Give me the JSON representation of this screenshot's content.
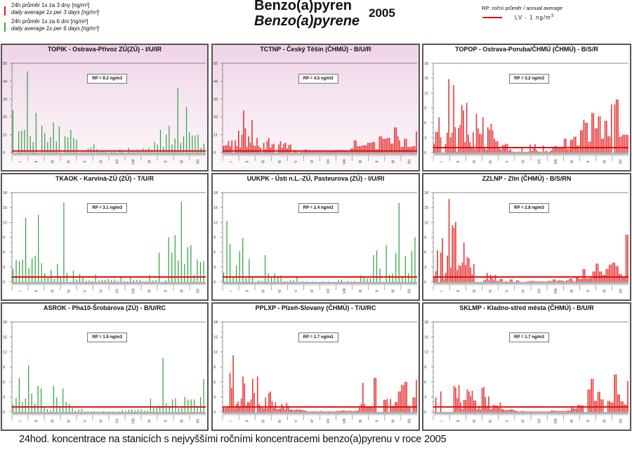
{
  "header": {
    "legend": [
      {
        "color": "#e01a1a",
        "cz": "24h průměr 1x za 3 dny [ng/m³]",
        "en": "daily average 1x per 3 days [ng/m³]"
      },
      {
        "color": "#3aaa3a",
        "cz": "24h průměr 1x za 6 dní [ng/m³]",
        "en": "daily average 1x per 6 days [ng/m³]"
      }
    ],
    "title_cz": "Benzo(a)pyren",
    "title_en": "Benzo(a)pyrene",
    "year": "2005",
    "rp_label_cz": "RP: roční průměr",
    "rp_label_sep": " / ",
    "rp_label_en": "annual average",
    "lv_label": "LV   - 1 ng/m",
    "lv_sup": "3"
  },
  "caption": "24hod. koncentrace na stanicích s nejvyššími ročními koncentracemi benzo(a)pyrenu v roce 2005",
  "colors": {
    "red": "#e01a1a",
    "green": "#2f9e3f",
    "limit": "#e01010"
  },
  "chart_data": [
    {
      "type": "bar",
      "title": "TOPIK - Ostrava-Přívoz ZÚ(ZÚ) - I/U/IR",
      "rp": "RP = 9.2 ng/m3",
      "series_color": "green",
      "highlight": true,
      "ylim": [
        0,
        55
      ],
      "yticks": [
        "0",
        "11",
        "22",
        "33",
        "44",
        "55"
      ],
      "limit_value": 1,
      "xticks": [
        "I",
        "II",
        "III",
        "IV",
        "V",
        "VI",
        "VII",
        "VIII",
        "IX",
        "X",
        "XI",
        "XII"
      ],
      "values": [
        26,
        0,
        13,
        13.5,
        14,
        50,
        10,
        6.5,
        24.5,
        0,
        16.5,
        12,
        6.5,
        9.5,
        18.5,
        7,
        16,
        0,
        10,
        9.5,
        14,
        9,
        8,
        0,
        1,
        0.5,
        2.5,
        3,
        5,
        2,
        0.5,
        1,
        0.5,
        0,
        0.5,
        0.5,
        0,
        2,
        1,
        0,
        3,
        1,
        1.5,
        2,
        1.5,
        2.5,
        2,
        3,
        2,
        6.5,
        5,
        14,
        3.5,
        11,
        16.5,
        5,
        8.5,
        40,
        6,
        10,
        28,
        12.5,
        10.5,
        10.5,
        11,
        3,
        5.5
      ]
    },
    {
      "type": "bar",
      "title": "TCTNP - Český Těšín (ČHMÚ) - B/U/R",
      "rp": "RP = 4.5 ng/m3",
      "series_color": "red",
      "highlight": true,
      "ylim": [
        0,
        55
      ],
      "yticks": [
        "0",
        "11",
        "22",
        "33",
        "44",
        "55"
      ],
      "limit_value": 1,
      "xticks": [
        "I",
        "II",
        "III",
        "IV",
        "V",
        "VI",
        "VII",
        "VIII",
        "IX",
        "X",
        "XI",
        "XII"
      ],
      "values": [
        4,
        4.5,
        4.5,
        7,
        4,
        7.5,
        0,
        7.5,
        4,
        13.5,
        3,
        11,
        26,
        15,
        3.5,
        10,
        6,
        20,
        4.5,
        4,
        9,
        4,
        3,
        0,
        6,
        2,
        7,
        9,
        3,
        5,
        5.5,
        0,
        0,
        5,
        7,
        3,
        5.5,
        6,
        2.5,
        4.5,
        5,
        0,
        1.5,
        1.5,
        0.5,
        0,
        0.5,
        0.5,
        0.5,
        2,
        0.5,
        0.5,
        0.5,
        0.5,
        0.5,
        0.5,
        0.5,
        1,
        0.5,
        0.5,
        0.5,
        1,
        0.5,
        0.5,
        1,
        1,
        1,
        1.5,
        1.5,
        1.5,
        1.5,
        1.5,
        1.5,
        1,
        0.5,
        0.5,
        2.5,
        2.5,
        7.5,
        7.5,
        4,
        4,
        4,
        4.5,
        4.5,
        4.5,
        6,
        6,
        6,
        6.5,
        6.5,
        2,
        2,
        10,
        10,
        8.5,
        8.5,
        8.5,
        9,
        9,
        5.5,
        5.5,
        15.5,
        15.5,
        10,
        7.5,
        3.5,
        3.5,
        8.5,
        8.5,
        3.5,
        3.5,
        3.5,
        4,
        4,
        13
      ]
    },
    {
      "type": "bar",
      "title": "TOPOP - Ostrava-Poruba/ČHMÚ (ČHMÚ) - B/S/R",
      "rp": "RP = 3.2 ng/m3",
      "series_color": "red",
      "highlight": false,
      "ylim": [
        0,
        18
      ],
      "yticks": [
        "0",
        "3",
        "6",
        "9",
        "12",
        "15",
        "18"
      ],
      "limit_value": 1,
      "xticks": [
        "I",
        "II",
        "III",
        "IV",
        "V",
        "VI",
        "VII",
        "VIII",
        "IX",
        "X",
        "XI",
        "XII"
      ],
      "values": [
        1.8,
        4.2,
        4.1,
        7.1,
        3.1,
        0,
        0,
        1.7,
        4,
        14.8,
        3.1,
        4,
        13.6,
        5.1,
        0.2,
        5,
        5.6,
        9.6,
        8.5,
        2.1,
        10,
        3.6,
        2.1,
        1.2,
        4.1,
        0.7,
        7.8,
        4.9,
        3.8,
        3.7,
        7.1,
        1,
        0.6,
        5.1,
        4.6,
        5.8,
        4.5,
        2.8,
        2.3,
        2.3,
        0.8,
        0.6,
        1.5,
        1.5,
        1.8,
        1.7,
        0.4,
        0.7,
        0.2,
        0.2,
        0.1,
        0.1,
        0.2,
        0.1,
        0.9,
        0.1,
        0.2,
        0.1,
        0.2,
        1.6,
        0.3,
        0.8,
        1.7,
        0.5,
        0.2,
        0.2,
        0.1,
        1.4,
        0.2,
        0.4,
        0.1,
        0.2,
        0.4,
        1,
        1.3,
        1.3,
        1,
        1,
        1,
        1,
        2.8,
        2.8,
        0.7,
        0.7,
        2.6,
        2.6,
        3.2,
        3.2,
        1.4,
        1.4,
        4.5,
        4.5,
        6.6,
        6,
        6,
        2.2,
        2.2,
        8,
        8,
        4.9,
        4.9,
        7.3,
        7.3,
        2.8,
        2.8,
        6.4,
        6.4,
        3.3,
        3.3,
        9.7,
        0,
        9.7,
        10.7,
        10.7,
        3.2,
        3.2,
        3.6,
        3.6,
        3.6,
        3.6
      ]
    },
    {
      "type": "bar",
      "title": "TKAOK - Karviná-ZÚ (ZÚ) - T/U/R",
      "rp": "RP = 3.1 ng/m3",
      "series_color": "green",
      "highlight": false,
      "ylim": [
        0,
        18
      ],
      "yticks": [
        "0",
        "3",
        "6",
        "9",
        "12",
        "15",
        "18"
      ],
      "limit_value": 1,
      "xticks": [
        "I",
        "II",
        "III",
        "IV",
        "V",
        "VI",
        "VII",
        "VIII",
        "IX",
        "X",
        "XI",
        "XII"
      ],
      "values": [
        2.6,
        4.4,
        4.2,
        4.5,
        12.9,
        2.8,
        4.8,
        5.3,
        13.5,
        3.8,
        1.7,
        1.1,
        2.4,
        0.6,
        3.6,
        1,
        16,
        1.8,
        0,
        2.3,
        0.5,
        1.6,
        0.8,
        0.2,
        0.3,
        0.2,
        1.5,
        0.3,
        0.4,
        0.4,
        0.6,
        0.4,
        0.5,
        0.2,
        0.9,
        0.2,
        0.1,
        1.1,
        0.4,
        0.4,
        0.4,
        0.1,
        0.2,
        1.4,
        0.3,
        0.4,
        5.9,
        0,
        0.3,
        9,
        5.9,
        9.4,
        4.3,
        16.2,
        3.6,
        7,
        7.4,
        1.4,
        4.5,
        4,
        4.2
      ]
    },
    {
      "type": "bar",
      "title": "UUKPK - Ústí n.L.-ZÚ, Pasteurova (ZÚ) - I/U/RI",
      "rp": "RP = 2.4 ng/m3",
      "series_color": "green",
      "highlight": false,
      "ylim": [
        0,
        18
      ],
      "yticks": [
        "0",
        "3",
        "6",
        "9",
        "12",
        "15",
        "18"
      ],
      "limit_value": 1,
      "xticks": [
        "I",
        "II",
        "III",
        "IV",
        "V",
        "VI",
        "VII",
        "VIII",
        "IX",
        "X",
        "XI",
        "XII"
      ],
      "values": [
        1.9,
        12.3,
        7.6,
        0.9,
        3.3,
        6.2,
        8.8,
        0.8,
        4.6,
        0.9,
        0,
        0.3,
        0.2,
        5.4,
        1.7,
        1.1,
        1.7,
        0.9,
        1.3,
        0.1,
        0.1,
        0.4,
        0.3,
        0.9,
        0,
        0.1,
        0.1,
        0,
        0.1,
        0,
        0,
        0.1,
        0,
        0.1,
        0,
        0,
        0.4,
        0.5,
        0,
        0.2,
        0.1,
        0.2,
        0,
        1.3,
        1,
        0.7,
        0.7,
        5.4,
        6.3,
        2.7,
        0,
        7.4,
        1.4,
        1.7,
        5.8,
        15.9,
        1.2,
        5.2,
        1.8,
        6.3,
        9
      ]
    },
    {
      "type": "bar",
      "title": "ZZLNP - Zlín (ČHMÚ) - B/S/RN",
      "rp": "RP = 2.8 ng/m3",
      "series_color": "red",
      "highlight": false,
      "ylim": [
        0,
        18
      ],
      "yticks": [
        "0",
        "3",
        "6",
        "9",
        "12",
        "15",
        "18"
      ],
      "limit_value": 1,
      "xticks": [
        "I",
        "II",
        "III",
        "IV",
        "V",
        "VI",
        "VII",
        "VIII",
        "IX",
        "X",
        "XI",
        "XII"
      ],
      "values": [
        1.2,
        2.2,
        6.4,
        0,
        5.9,
        8.8,
        0.6,
        1.8,
        5.3,
        16.7,
        2.9,
        11.4,
        10.9,
        12.1,
        2.4,
        3.4,
        3.2,
        3.9,
        7.9,
        3.4,
        5,
        4.8,
        2.9,
        1.5,
        3.6,
        0,
        0,
        0,
        0,
        0,
        0.3,
        0.5,
        1.8,
        0.3,
        1.4,
        0.8,
        0.3,
        1.4,
        0.2,
        0.2,
        0.6,
        0.6,
        0,
        0.1,
        0.1,
        0,
        0.5,
        0.5,
        0,
        0,
        0.3,
        0.3,
        0,
        0,
        0,
        0,
        0.1,
        0.1,
        0.2,
        0.2,
        0.2,
        0.1,
        0.1,
        0.1,
        0.1,
        0.1,
        0.1,
        0.1,
        0.1,
        0.2,
        0.2,
        0.2,
        0.5,
        0.5,
        0.2,
        0.3,
        0.3,
        0.3,
        0.2,
        0.1,
        0.3,
        0.3,
        0.7,
        0.7,
        0.2,
        0.1,
        0.9,
        0.9,
        0.6,
        0.6,
        2.6,
        2.6,
        0.7,
        0.7,
        0.8,
        0.8,
        2.1,
        2.1,
        3.7,
        3.7,
        2.1,
        2.1,
        1.4,
        1.4,
        2.6,
        2.6,
        3.5,
        3.5,
        3.9,
        3.9,
        3.2,
        3.2,
        1.6,
        1.6,
        1,
        1,
        9.5,
        9.5
      ]
    },
    {
      "type": "bar",
      "title": "ASROK - Pha10-Šrobárova (ZÚ) - B/U/RC",
      "rp": "RP = 1.9 ng/m3",
      "series_color": "green",
      "highlight": false,
      "ylim": [
        0,
        18
      ],
      "yticks": [
        "0",
        "3",
        "6",
        "9",
        "12",
        "15",
        "18"
      ],
      "limit_value": 1,
      "xticks": [
        "I",
        "II",
        "III",
        "IV",
        "V",
        "VI",
        "VII",
        "VIII",
        "IX",
        "X",
        "XI",
        "XII"
      ],
      "values": [
        1.5,
        2.8,
        6.8,
        2,
        2.7,
        9.3,
        3.7,
        1.6,
        5.2,
        4.7,
        1,
        0.6,
        0.3,
        5.2,
        2.9,
        1.2,
        4.7,
        2,
        1.6,
        0.8,
        0.2,
        0.4,
        0.6,
        0.1,
        0.1,
        0.1,
        0.2,
        0.1,
        0.1,
        0.2,
        0.1,
        0.1,
        0.1,
        0,
        0.1,
        0.4,
        0.2,
        0.4,
        0.5,
        0.3,
        0.5,
        0.5,
        0.3,
        0.3,
        2.7,
        0.8,
        1,
        1.3,
        10.8,
        1.7,
        1.2,
        2.5,
        2.8,
        0.7,
        1.2,
        3,
        2.5,
        2.5,
        2.5,
        1,
        3,
        6.6
      ]
    },
    {
      "type": "bar",
      "title": "PPLXP - Plzeň-Slovany (ČHMÚ) - T/U/RC",
      "rp": "RP = 1.7 ng/m3",
      "series_color": "red",
      "highlight": false,
      "ylim": [
        0,
        18
      ],
      "yticks": [
        "0",
        "3",
        "6",
        "9",
        "12",
        "15",
        "18"
      ],
      "limit_value": 1,
      "xticks": [
        "I",
        "II",
        "III",
        "IV",
        "V",
        "VI",
        "VII",
        "VIII",
        "IX",
        "X",
        "XI",
        "XII"
      ],
      "values": [
        1,
        0.8,
        0.8,
        1,
        7.8,
        4.8,
        11.3,
        0.8,
        1.6,
        2.1,
        1,
        2.7,
        7.1,
        5.7,
        1.3,
        2,
        1.9,
        2.5,
        6.6,
        3.8,
        0,
        7.1,
        1.5,
        1,
        0.8,
        0.7,
        2.9,
        0.8,
        3.8,
        4.1,
        2.2,
        0.8,
        1.9,
        0.6,
        0.6,
        0.7,
        1.6,
        1,
        0.5,
        1.8,
        1,
        0.5,
        0.5,
        0.4,
        0.4,
        0.5,
        0.5,
        0.5,
        0.4,
        0.4,
        0.3,
        0.2,
        0.1,
        0.1,
        0.1,
        0.1,
        0.1,
        0.1,
        0.1,
        0.1,
        0.2,
        0.1,
        0.1,
        0.1,
        0.1,
        0.1,
        0.1,
        0.1,
        0.1,
        0.1,
        0.2,
        0.2,
        0.2,
        0.3,
        0.3,
        0.3,
        0.2,
        0.2,
        0.3,
        0.2,
        0.1,
        0.2,
        0.3,
        0.3,
        1,
        1.6,
        5.8,
        1.6,
        1,
        1,
        1,
        1,
        1.1,
        6.8,
        6.8,
        0,
        0,
        0,
        0,
        2.4,
        2.4,
        2.6,
        0,
        2.6,
        1.2,
        1.2,
        2,
        2,
        4.1,
        4.1,
        5.4,
        5.4,
        6,
        6,
        1.2,
        1.2,
        0,
        2.9,
        2.9,
        6.4
      ]
    },
    {
      "type": "bar",
      "title": "SKLMP - Kladno-střed města (ČHMÚ) - B/U/R",
      "rp": "RP = 1.7 ng/m3",
      "series_color": "red",
      "highlight": false,
      "ylim": [
        0,
        18
      ],
      "yticks": [
        "0",
        "3",
        "6",
        "9",
        "12",
        "15",
        "18"
      ],
      "limit_value": 1,
      "xticks": [
        "I",
        "II",
        "III",
        "IV",
        "V",
        "VI",
        "VII",
        "VIII",
        "IX",
        "X",
        "XI",
        "XII"
      ],
      "values": [
        0,
        2.9,
        0,
        0,
        4.1,
        0,
        0,
        0,
        0,
        0,
        0,
        0,
        5.2,
        4.9,
        2.8,
        5.4,
        1.9,
        0.6,
        2.4,
        2.4,
        4.5,
        4.1,
        3.2,
        4.2,
        2.3,
        2.3,
        0.6,
        1.2,
        0.5,
        4.8,
        5,
        3,
        1.2,
        3.1,
        0.6,
        0.7,
        1.4,
        1.3,
        1.3,
        0.8,
        1.9,
        0.6,
        0.5,
        0.4,
        0.4,
        0.4,
        0.5,
        0.5,
        0.4,
        0.3,
        0.2,
        0.1,
        0.1,
        0.2,
        0.2,
        0.1,
        0.1,
        0.1,
        0.1,
        0.1,
        0.1,
        0.1,
        0.1,
        0.1,
        0.1,
        0.1,
        0.1,
        0.1,
        0.1,
        0.1,
        0.1,
        0.3,
        0.3,
        0.2,
        0.2,
        0.2,
        0.2,
        0.2,
        0.2,
        0.2,
        0.2,
        0.3,
        0.3,
        0.8,
        0.8,
        0.7,
        0.7,
        1.4,
        1.4,
        1.3,
        1.3,
        0,
        0,
        4.5,
        4.5,
        6.6,
        6.6,
        2.2,
        2.2,
        4,
        4,
        2.5,
        2.5,
        0,
        0,
        2.2,
        2.2,
        1.9,
        1.9,
        7.5,
        7.5,
        3.5,
        3.5,
        2.1,
        2.1,
        1.5,
        1.5,
        6.2
      ]
    }
  ]
}
